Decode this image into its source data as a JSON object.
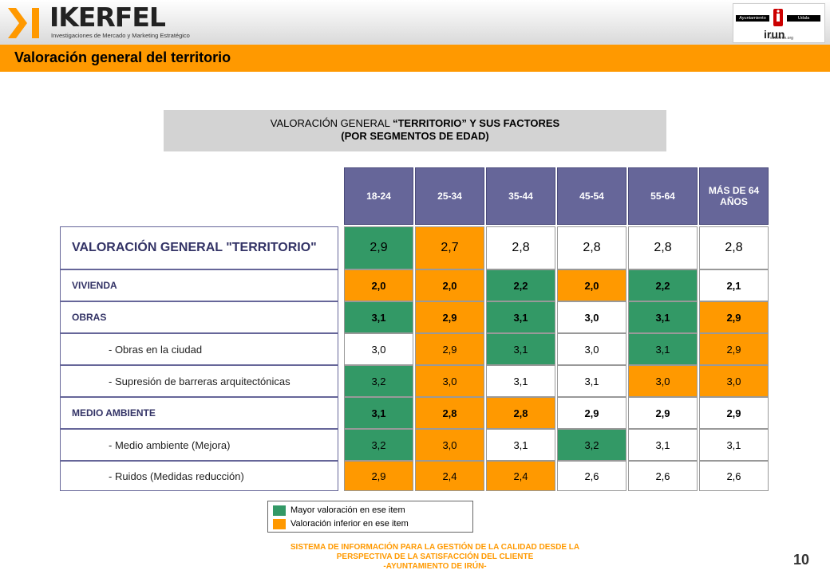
{
  "header": {
    "logo_text": "IKERFEL",
    "logo_tagline": "Investigaciones de Mercado y Marketing Estratégico",
    "irun_logo": {
      "bar_left": "Ayuntamiento",
      "bar_right": "Udala",
      "name": "irun",
      "url": "www.irun.org"
    }
  },
  "page_title": "Valoración general del territorio",
  "subtitle": {
    "line1_normal": "VALORACIÓN GENERAL ",
    "line1_bold": "“TERRITORIO” Y SUS FACTORES",
    "line2": "(POR SEGMENTOS DE EDAD)"
  },
  "table": {
    "columns": [
      "18-24",
      "25-34",
      "35-44",
      "45-54",
      "55-64",
      "MÁS DE 64 AÑOS"
    ],
    "rows": [
      {
        "label": "VALORACIÓN GENERAL \"TERRITORIO\"",
        "kind": "main",
        "values": [
          "2,9",
          "2,7",
          "2,8",
          "2,8",
          "2,8",
          "2,8"
        ],
        "colors": [
          "g",
          "o",
          "w",
          "w",
          "w",
          "w"
        ]
      },
      {
        "label": "VIVIENDA",
        "kind": "cat",
        "values": [
          "2,0",
          "2,0",
          "2,2",
          "2,0",
          "2,2",
          "2,1"
        ],
        "colors": [
          "o",
          "o",
          "g",
          "o",
          "g",
          "w"
        ]
      },
      {
        "label": "OBRAS",
        "kind": "cat",
        "values": [
          "3,1",
          "2,9",
          "3,1",
          "3,0",
          "3,1",
          "2,9"
        ],
        "colors": [
          "g",
          "o",
          "g",
          "w",
          "g",
          "o"
        ]
      },
      {
        "label": "- Obras en la ciudad",
        "kind": "sub",
        "values": [
          "3,0",
          "2,9",
          "3,1",
          "3,0",
          "3,1",
          "2,9"
        ],
        "colors": [
          "w",
          "o",
          "g",
          "w",
          "g",
          "o"
        ]
      },
      {
        "label": "- Supresión de barreras arquitectónicas",
        "kind": "sub",
        "values": [
          "3,2",
          "3,0",
          "3,1",
          "3,1",
          "3,0",
          "3,0"
        ],
        "colors": [
          "g",
          "o",
          "w",
          "w",
          "o",
          "o"
        ]
      },
      {
        "label": "MEDIO AMBIENTE",
        "kind": "cat",
        "values": [
          "3,1",
          "2,8",
          "2,8",
          "2,9",
          "2,9",
          "2,9"
        ],
        "colors": [
          "g",
          "o",
          "o",
          "w",
          "w",
          "w"
        ]
      },
      {
        "label": "- Medio ambiente (Mejora)",
        "kind": "sub",
        "values": [
          "3,2",
          "3,0",
          "3,1",
          "3,2",
          "3,1",
          "3,1"
        ],
        "colors": [
          "g",
          "o",
          "w",
          "g",
          "w",
          "w"
        ]
      },
      {
        "label": "- Ruidos (Medidas reducción)",
        "kind": "sub",
        "values": [
          "2,9",
          "2,4",
          "2,4",
          "2,6",
          "2,6",
          "2,6"
        ],
        "colors": [
          "o",
          "o",
          "o",
          "w",
          "w",
          "w"
        ]
      }
    ]
  },
  "legend": [
    {
      "label": "Mayor valoración en ese item",
      "color": "#339966"
    },
    {
      "label": "Valoración inferior en ese item",
      "color": "#ff9900"
    }
  ],
  "footer": {
    "line1": "SISTEMA DE INFORMACIÓN PARA LA GESTIÓN DE LA CALIDAD DESDE LA",
    "line2": "PERSPECTIVA DE LA SATISFACCIÓN DEL CLIENTE",
    "line3": "-AYUNTAMIENTO DE IRÚN-"
  },
  "page_number": "10"
}
